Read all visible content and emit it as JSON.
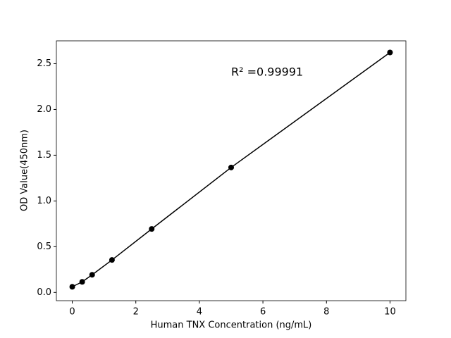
{
  "chart_data": {
    "type": "line",
    "x_label": "Human TNX Concentration (ng/mL)",
    "y_label": "OD Value(450nm)",
    "annotation": "R² =0.99991",
    "x": [
      0,
      0.3125,
      0.625,
      1.25,
      2.5,
      5,
      10
    ],
    "series": [
      {
        "color": "#000000",
        "values": [
          0.062,
          0.116,
          0.193,
          0.355,
          0.694,
          1.366,
          2.623
        ]
      }
    ],
    "xlim": [
      -0.5,
      10.5
    ],
    "ylim": [
      -0.09,
      2.75
    ],
    "xticks": [
      0,
      2,
      4,
      6,
      8,
      10
    ],
    "yticks": [
      {
        "value": 0,
        "label": "0.0"
      },
      0.5,
      {
        "value": 1,
        "label": "1.0"
      },
      1.5,
      {
        "value": 2,
        "label": "2.0"
      },
      2.5
    ],
    "grid": false
  }
}
